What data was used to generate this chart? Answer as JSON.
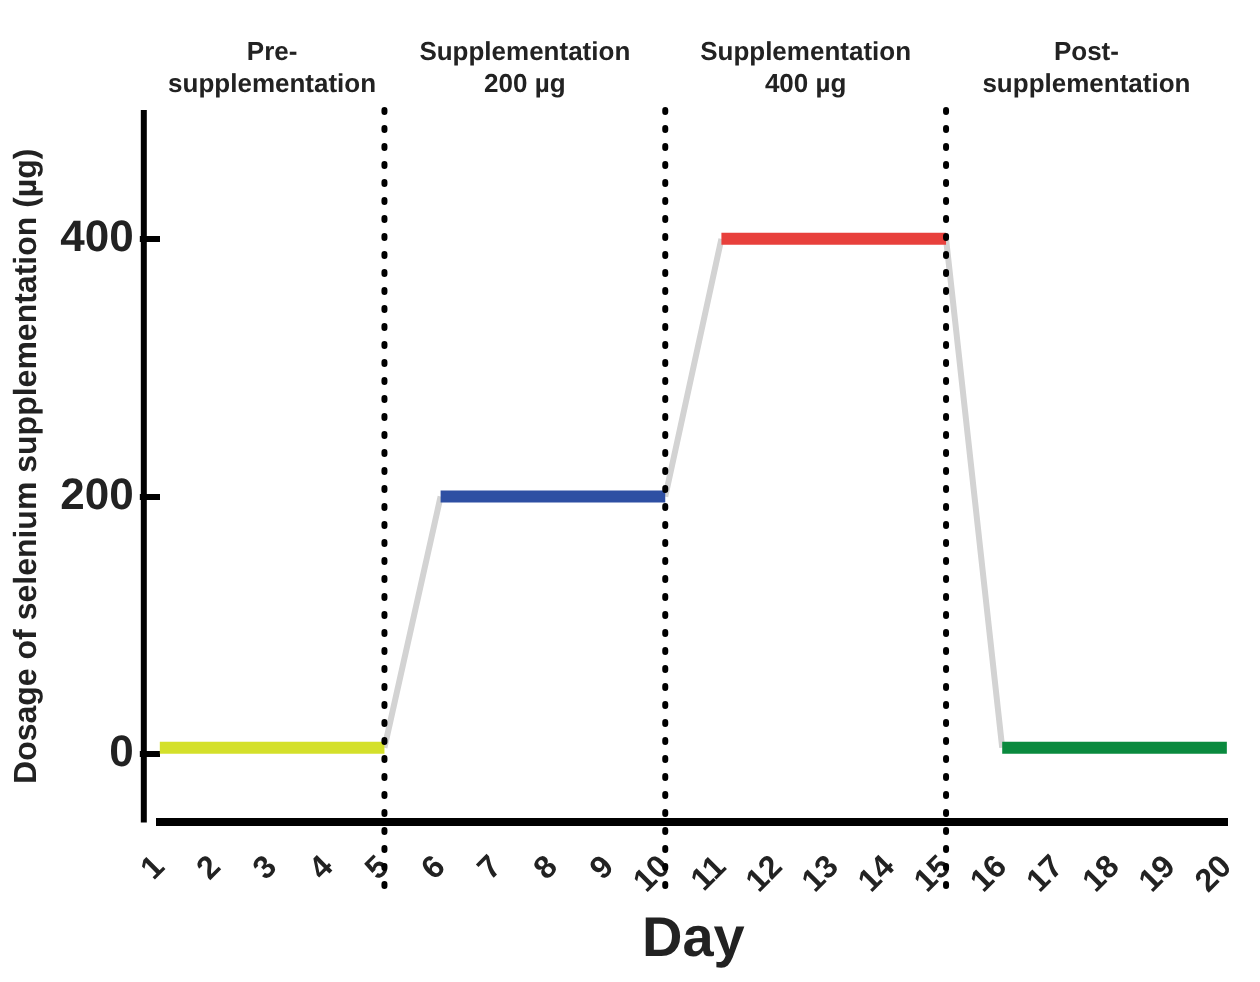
{
  "chart_data": {
    "type": "line",
    "xlabel": "Day",
    "ylabel": "Dosage of selenium supplementation (µg)",
    "series": [
      {
        "color": "#d3d3d3",
        "x": [
          5,
          6,
          8,
          10,
          11,
          13,
          15,
          16
        ],
        "values": [
          5,
          200,
          null,
          200,
          400,
          null,
          400,
          5
        ]
      },
      {
        "color": "#d4e02a",
        "x": [
          1,
          2,
          3,
          4,
          5
        ],
        "values": [
          5,
          5,
          5,
          5,
          5
        ]
      },
      {
        "color": "#2e4fa3",
        "x": [
          6,
          7,
          8,
          9,
          10
        ],
        "values": [
          200,
          200,
          200,
          200,
          200
        ]
      },
      {
        "color": "#e8403c",
        "x": [
          11,
          12,
          13,
          14,
          15
        ],
        "values": [
          400,
          400,
          400,
          400,
          400
        ]
      },
      {
        "color": "#0a8a3e",
        "x": [
          16,
          17,
          18,
          19,
          20
        ],
        "values": [
          5,
          5,
          5,
          5,
          5
        ]
      }
    ],
    "xlim": [
      1,
      20
    ],
    "xticks": [
      1,
      2,
      3,
      4,
      5,
      6,
      7,
      8,
      9,
      10,
      11,
      12,
      13,
      14,
      15,
      16,
      17,
      18,
      19,
      20
    ],
    "ylim": [
      -53,
      500
    ],
    "yticks": [
      0,
      200,
      400
    ],
    "ref_lines": [
      {
        "axis": "x",
        "value": 5,
        "color": "#000000",
        "line_style": "dotted"
      },
      {
        "axis": "x",
        "value": 10,
        "color": "#000000",
        "line_style": "dotted"
      },
      {
        "axis": "x",
        "value": 15,
        "color": "#000000",
        "line_style": "dotted"
      }
    ],
    "annotations": [
      "Pre-supplementation",
      "Supplementation 200 µg",
      "Supplementation 400 µg",
      "Post-supplementation"
    ],
    "grid": false,
    "legend": false,
    "marker": "none",
    "line_style": "solid"
  }
}
